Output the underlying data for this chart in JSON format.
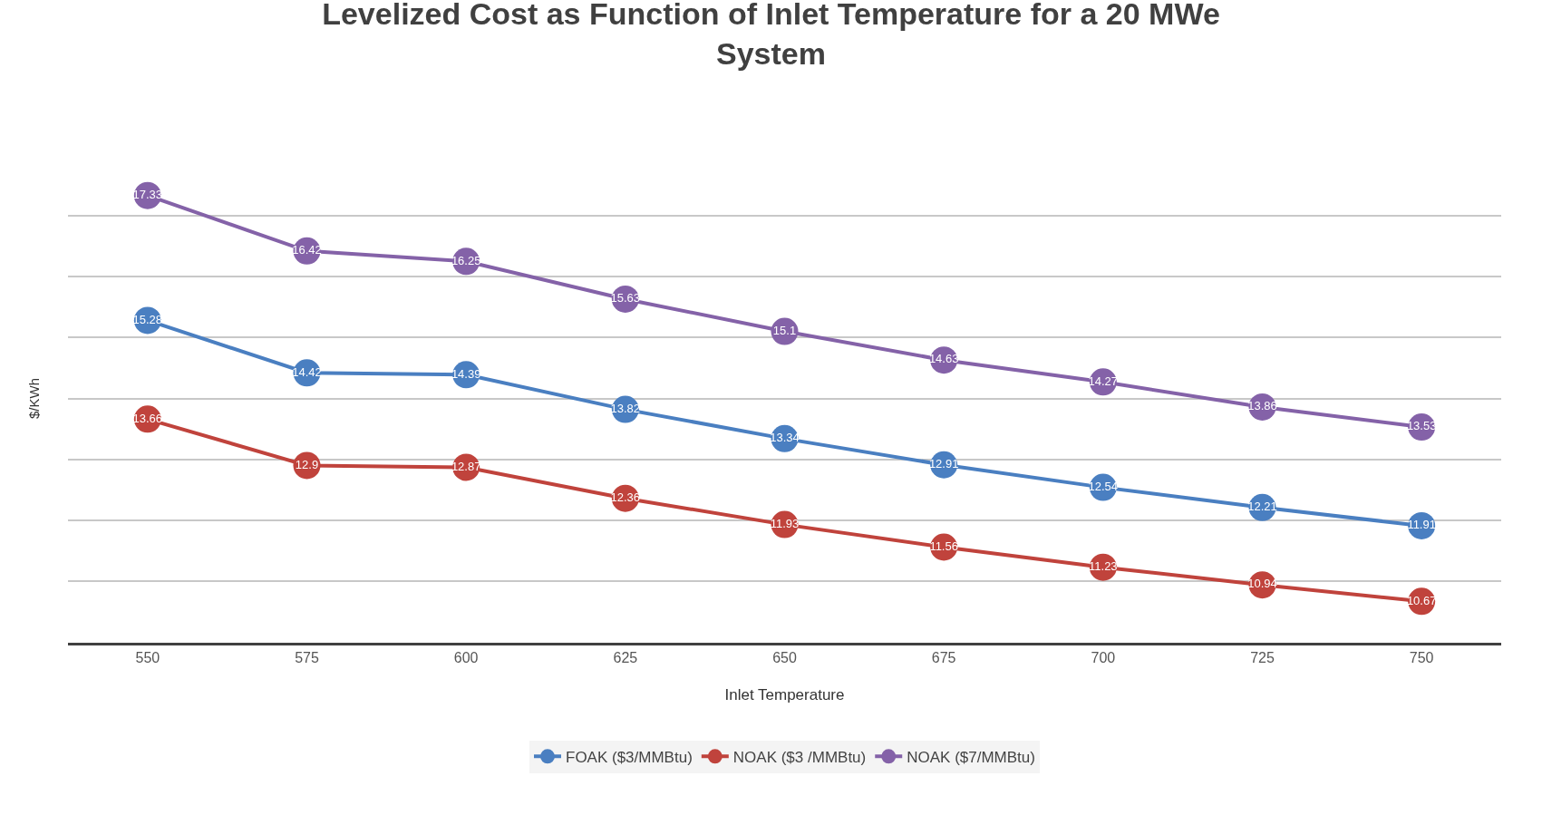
{
  "chart_data": {
    "type": "line",
    "title": "Levelized Cost as Function of Inlet Temperature for a 20 MWe\nSystem",
    "xlabel": "Inlet Temperature",
    "ylabel": "$/KWh",
    "categories": [
      "550",
      "575",
      "600",
      "625",
      "650",
      "675",
      "700",
      "725",
      "750"
    ],
    "series": [
      {
        "name": "FOAK ($3/MMBtu)",
        "color": "#4a7fc1",
        "values": [
          15.28,
          14.42,
          14.39,
          13.82,
          13.34,
          12.91,
          12.54,
          12.21,
          11.91
        ]
      },
      {
        "name": "NOAK ($3 /MMBtu)",
        "color": "#c0433c",
        "values": [
          13.66,
          12.9,
          12.87,
          12.36,
          11.93,
          11.56,
          11.23,
          10.94,
          10.67
        ]
      },
      {
        "name": "NOAK ($7/MMBtu)",
        "color": "#8462a8",
        "values": [
          17.33,
          16.42,
          16.25,
          15.63,
          15.1,
          14.63,
          14.27,
          13.86,
          13.53
        ]
      }
    ],
    "tick_labels": "x",
    "grid": "y",
    "legend": "bottom",
    "marker": "circle",
    "line_style": "solid",
    "data_labels": true
  }
}
